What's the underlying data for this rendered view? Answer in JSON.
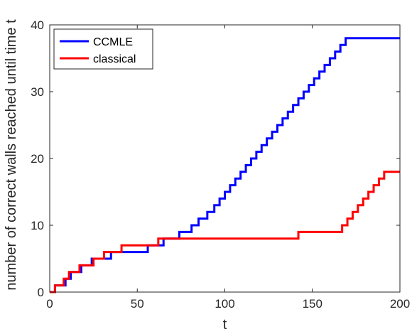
{
  "chart_data": {
    "type": "line",
    "xlabel": "t",
    "ylabel": "number of correct walls reached until time t",
    "xlim": [
      0,
      200
    ],
    "ylim": [
      0,
      40
    ],
    "xticks": [
      0,
      50,
      100,
      150,
      200
    ],
    "yticks": [
      0,
      10,
      20,
      30,
      40
    ],
    "grid": false,
    "legend_position": "top-left",
    "series": [
      {
        "name": "CCMLE",
        "color": "#0000ff",
        "points": [
          [
            0,
            0
          ],
          [
            3,
            0
          ],
          [
            3,
            1
          ],
          [
            9,
            1
          ],
          [
            9,
            2
          ],
          [
            12,
            2
          ],
          [
            12,
            3
          ],
          [
            18,
            3
          ],
          [
            18,
            4
          ],
          [
            24,
            4
          ],
          [
            24,
            5
          ],
          [
            35,
            5
          ],
          [
            35,
            6
          ],
          [
            56,
            6
          ],
          [
            56,
            7
          ],
          [
            65,
            7
          ],
          [
            65,
            8
          ],
          [
            74,
            8
          ],
          [
            74,
            9
          ],
          [
            81,
            9
          ],
          [
            81,
            10
          ],
          [
            85,
            10
          ],
          [
            85,
            11
          ],
          [
            90,
            11
          ],
          [
            90,
            12
          ],
          [
            94,
            12
          ],
          [
            94,
            13
          ],
          [
            97,
            13
          ],
          [
            97,
            14
          ],
          [
            100,
            14
          ],
          [
            100,
            15
          ],
          [
            103,
            15
          ],
          [
            103,
            16
          ],
          [
            106,
            16
          ],
          [
            106,
            17
          ],
          [
            109,
            17
          ],
          [
            109,
            18
          ],
          [
            112,
            18
          ],
          [
            112,
            19
          ],
          [
            115,
            19
          ],
          [
            115,
            20
          ],
          [
            118,
            20
          ],
          [
            118,
            21
          ],
          [
            121,
            21
          ],
          [
            121,
            22
          ],
          [
            124,
            22
          ],
          [
            124,
            23
          ],
          [
            127,
            23
          ],
          [
            127,
            24
          ],
          [
            130,
            24
          ],
          [
            130,
            25
          ],
          [
            133,
            25
          ],
          [
            133,
            26
          ],
          [
            136,
            26
          ],
          [
            136,
            27
          ],
          [
            139,
            27
          ],
          [
            139,
            28
          ],
          [
            142,
            28
          ],
          [
            142,
            29
          ],
          [
            145,
            29
          ],
          [
            145,
            30
          ],
          [
            148,
            30
          ],
          [
            148,
            31
          ],
          [
            151,
            31
          ],
          [
            151,
            32
          ],
          [
            154,
            32
          ],
          [
            154,
            33
          ],
          [
            157,
            33
          ],
          [
            157,
            34
          ],
          [
            160,
            34
          ],
          [
            160,
            35
          ],
          [
            163,
            35
          ],
          [
            163,
            36
          ],
          [
            166,
            36
          ],
          [
            166,
            37
          ],
          [
            169,
            37
          ],
          [
            169,
            38
          ],
          [
            172,
            38
          ],
          [
            172,
            38
          ],
          [
            200,
            38
          ]
        ]
      },
      {
        "name": "classical",
        "color": "#ff0000",
        "points": [
          [
            0,
            0
          ],
          [
            3,
            0
          ],
          [
            3,
            1
          ],
          [
            8,
            1
          ],
          [
            8,
            2
          ],
          [
            11,
            2
          ],
          [
            11,
            3
          ],
          [
            17,
            3
          ],
          [
            17,
            4
          ],
          [
            25,
            4
          ],
          [
            25,
            5
          ],
          [
            31,
            5
          ],
          [
            31,
            6
          ],
          [
            41,
            6
          ],
          [
            41,
            7
          ],
          [
            62,
            7
          ],
          [
            62,
            8
          ],
          [
            142,
            8
          ],
          [
            142,
            9
          ],
          [
            167,
            9
          ],
          [
            167,
            10
          ],
          [
            170,
            10
          ],
          [
            170,
            11
          ],
          [
            173,
            11
          ],
          [
            173,
            12
          ],
          [
            176,
            12
          ],
          [
            176,
            13
          ],
          [
            179,
            13
          ],
          [
            179,
            14
          ],
          [
            182,
            14
          ],
          [
            182,
            15
          ],
          [
            185,
            15
          ],
          [
            185,
            16
          ],
          [
            188,
            16
          ],
          [
            188,
            17
          ],
          [
            191,
            17
          ],
          [
            191,
            18
          ],
          [
            200,
            18
          ]
        ]
      }
    ]
  }
}
